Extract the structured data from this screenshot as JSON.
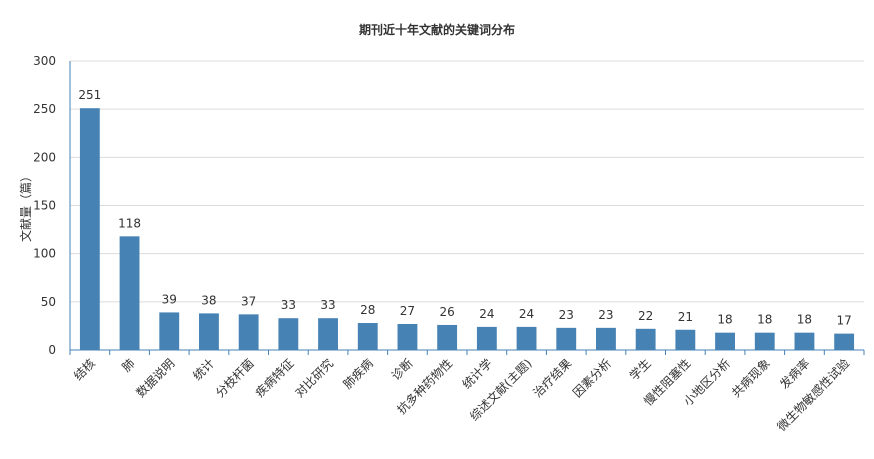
{
  "chart_data": {
    "type": "bar",
    "title": "期刊近十年文献的关键词分布",
    "ylabel": "文献量（篇）",
    "xlabel": "",
    "ylim": [
      0,
      300
    ],
    "yticks": [
      0,
      50,
      100,
      150,
      200,
      250,
      300
    ],
    "grid": true,
    "bar_color": "#4682b4",
    "categories": [
      "结核",
      "肺",
      "数据说明",
      "统计",
      "分枝杆菌",
      "疾病特征",
      "对比研究",
      "肺疾病",
      "诊断",
      "抗多种药物性",
      "统计学",
      "综述文献(主题)",
      "治疗结果",
      "因素分析",
      "学生",
      "慢性阻塞性",
      "小地区分析",
      "共病现象",
      "发病率",
      "微生物敏感性试验"
    ],
    "values": [
      251,
      118,
      39,
      38,
      37,
      33,
      33,
      28,
      27,
      26,
      24,
      24,
      23,
      23,
      22,
      21,
      18,
      18,
      18,
      17
    ]
  }
}
